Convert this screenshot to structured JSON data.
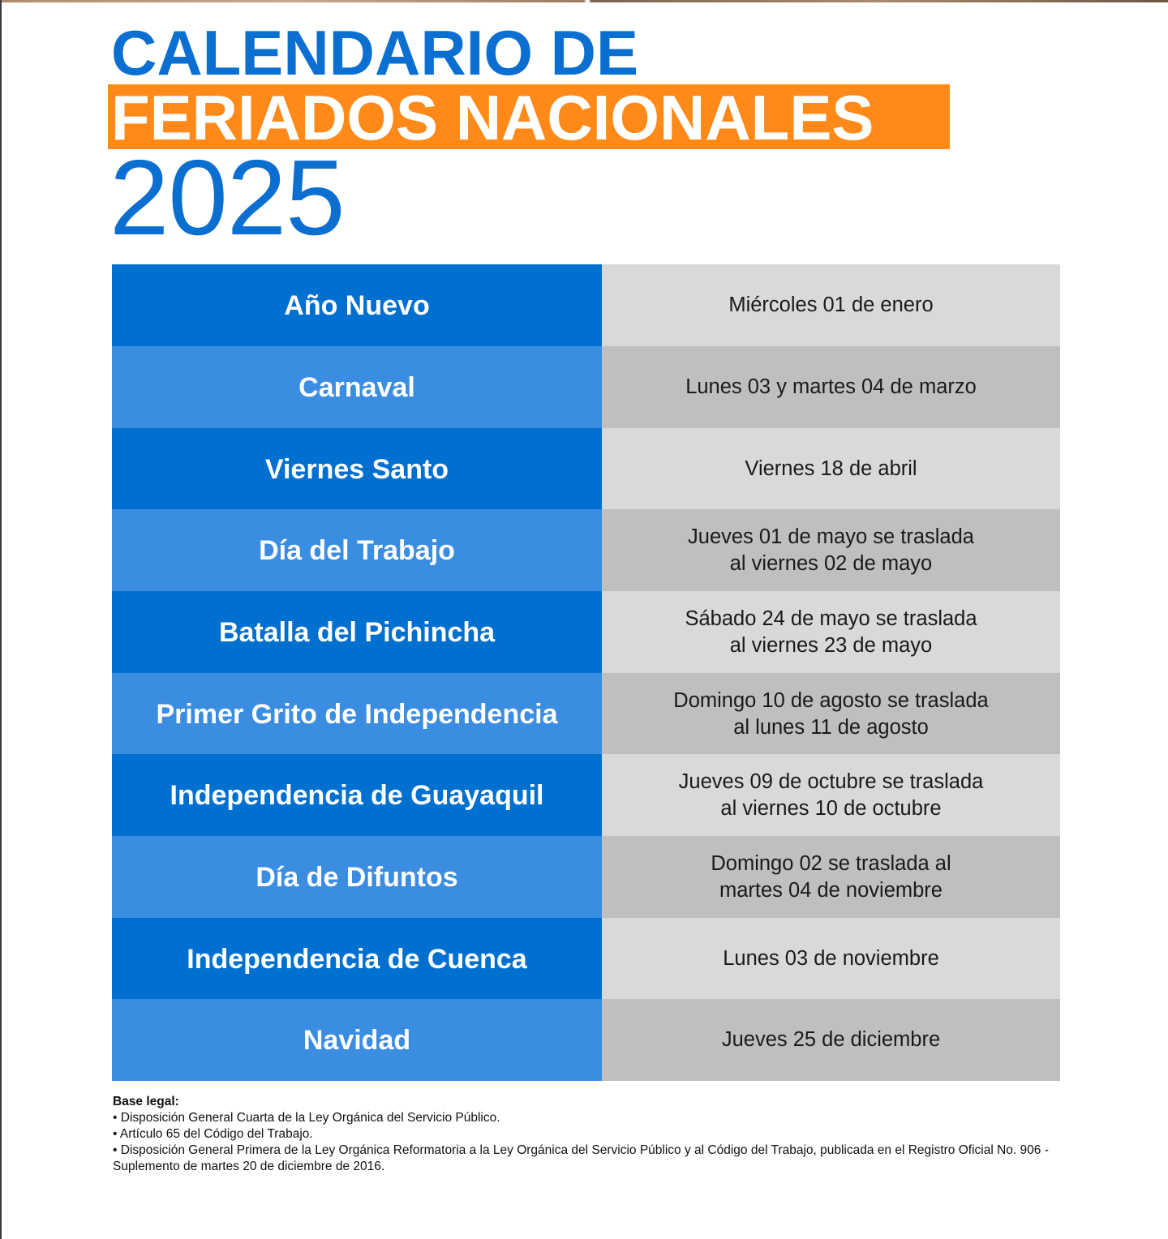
{
  "title": {
    "line1": "CALENDARIO DE",
    "line2": "FERIADOS NACIONALES",
    "year": "2025"
  },
  "colors": {
    "blue_dark": "#0070d0",
    "blue_light": "#3a8de0",
    "orange": "#ff8a1a",
    "gray_light": "#d9d9d9",
    "gray_dark": "#bfbfbf"
  },
  "holidays": [
    {
      "name": "Año Nuevo",
      "date": "Miércoles 01 de enero"
    },
    {
      "name": "Carnaval",
      "date": "Lunes 03 y martes 04 de marzo"
    },
    {
      "name": "Viernes Santo",
      "date": "Viernes 18 de abril"
    },
    {
      "name": "Día del Trabajo",
      "date": "Jueves 01 de mayo se traslada\nal viernes 02 de mayo"
    },
    {
      "name": "Batalla del Pichincha",
      "date": "Sábado 24 de mayo se traslada\nal viernes 23 de mayo"
    },
    {
      "name": "Primer Grito de Independencia",
      "date": "Domingo 10 de agosto se traslada\nal lunes 11 de agosto"
    },
    {
      "name": "Independencia de Guayaquil",
      "date": "Jueves 09 de octubre se traslada\nal viernes 10 de octubre"
    },
    {
      "name": "Día de Difuntos",
      "date": "Domingo 02 se traslada al\nmartes 04 de noviembre"
    },
    {
      "name": "Independencia de Cuenca",
      "date": "Lunes 03 de noviembre"
    },
    {
      "name": "Navidad",
      "date": "Jueves 25 de diciembre"
    }
  ],
  "legal": {
    "title": "Base legal:",
    "items": [
      "• Disposición General Cuarta de la Ley Orgánica del Servicio Público.",
      "• Artículo 65 del Código del Trabajo.",
      "• Disposición General Primera de la  Ley Orgánica Reformatoria a la Ley Orgánica del Servicio Público y al Código del Trabajo, publicada en el Registro Oficial No. 906 - Suplemento de martes 20 de diciembre de 2016."
    ]
  }
}
